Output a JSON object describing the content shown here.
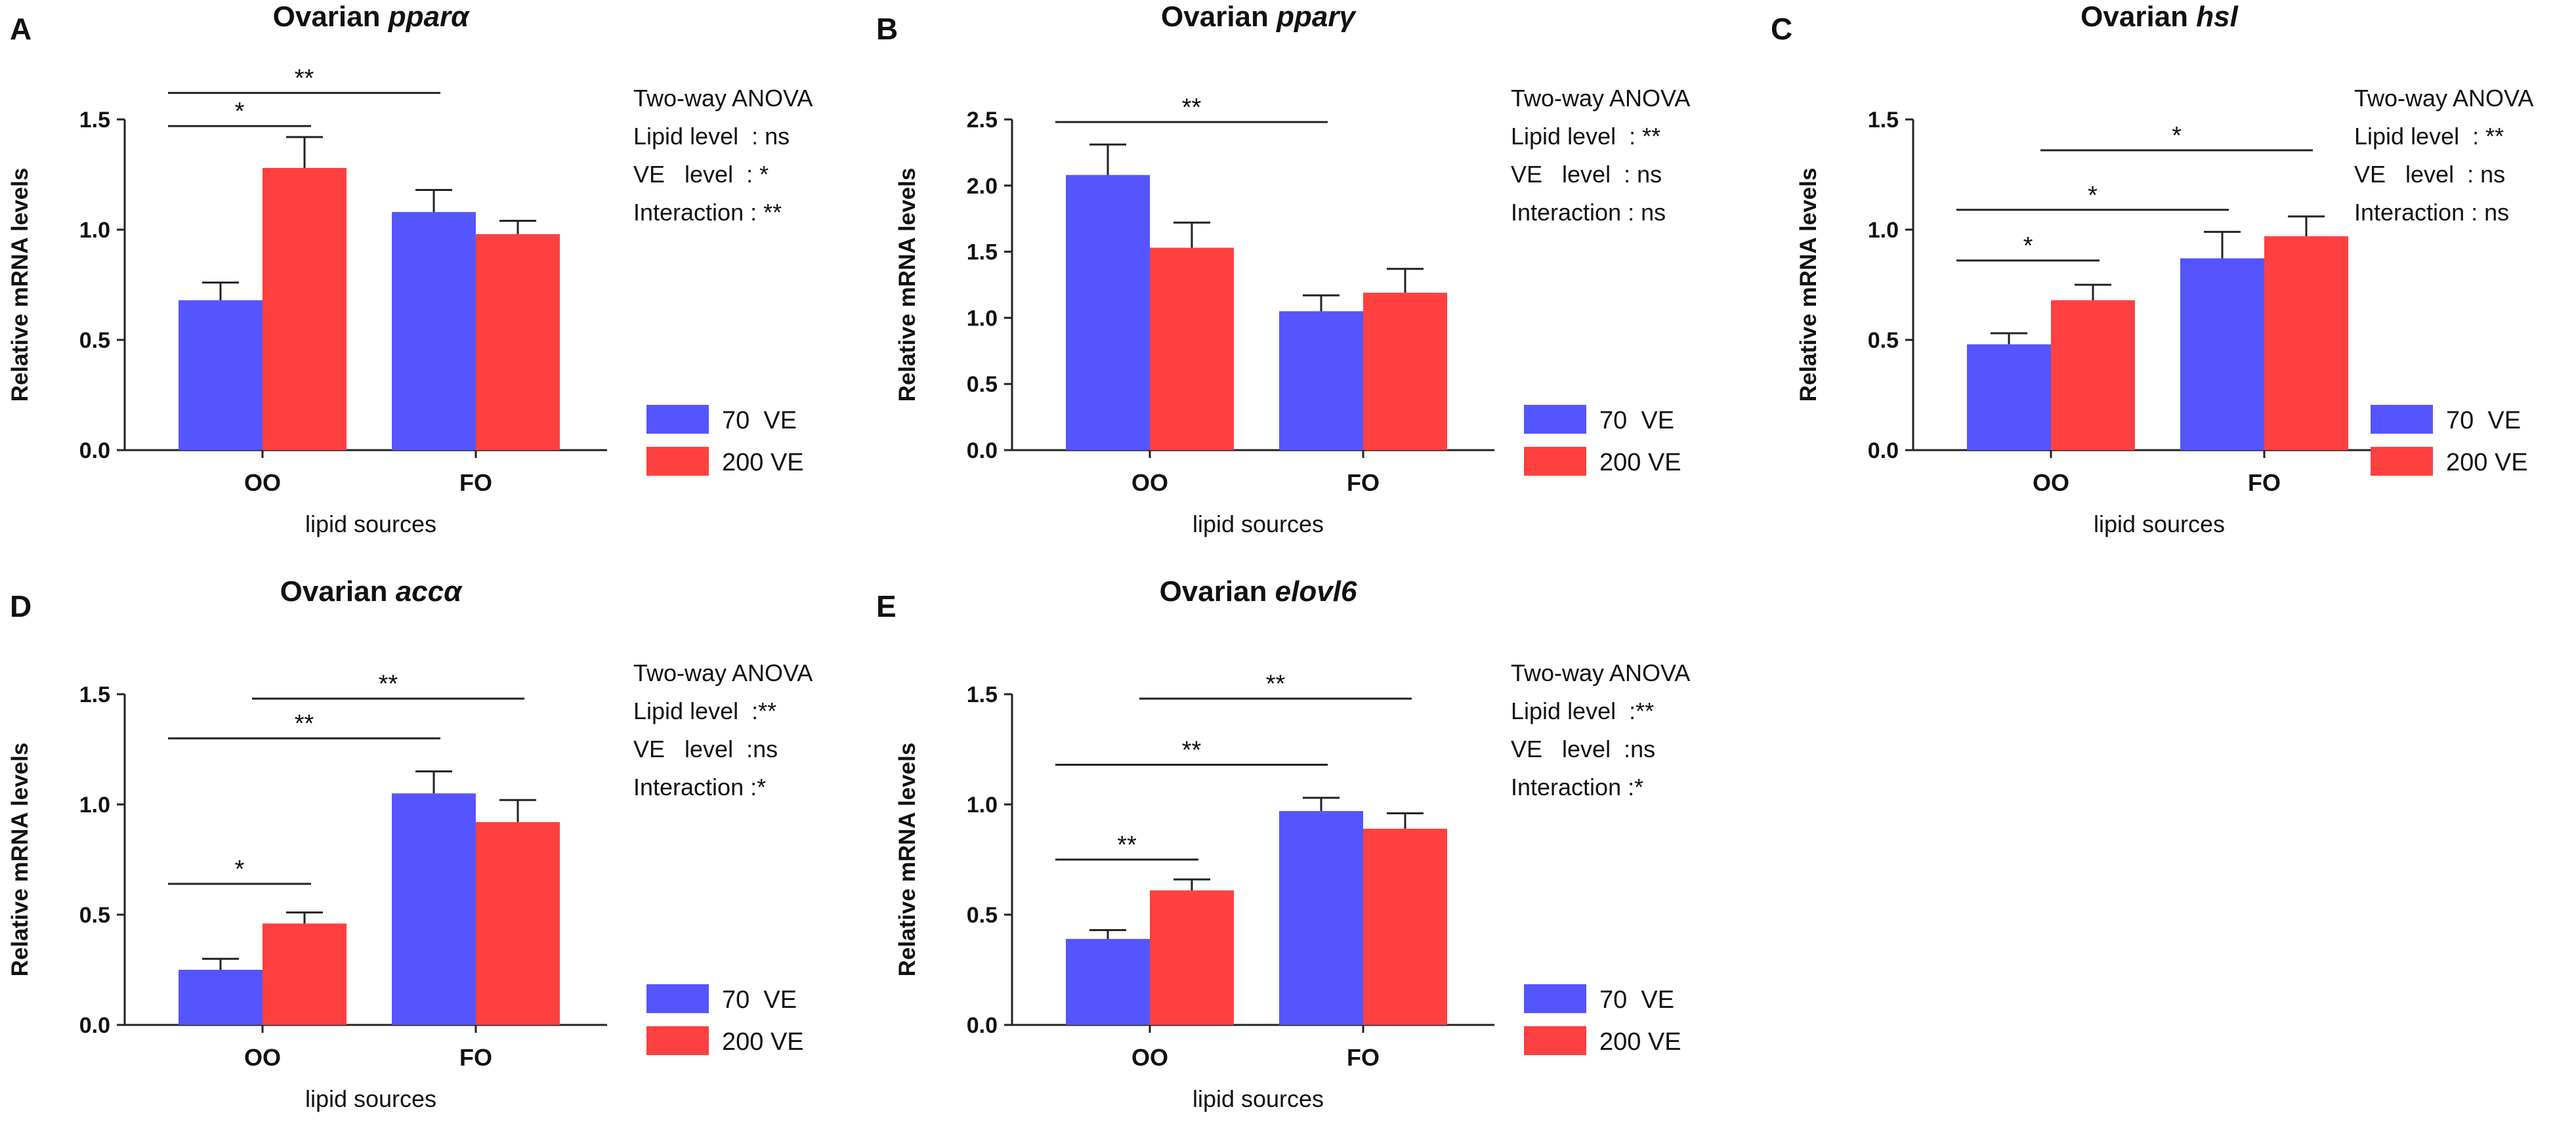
{
  "chart_data": [
    {
      "panel": "A",
      "type": "bar",
      "title_prefix": "Ovarian",
      "title_gene": "pparα",
      "categories": [
        "OO",
        "FO"
      ],
      "series": [
        {
          "name": "70  VE",
          "color": "#5555ff",
          "values": [
            0.68,
            1.08
          ],
          "errors": [
            0.08,
            0.1
          ]
        },
        {
          "name": "200 VE",
          "color": "#ff4040",
          "values": [
            1.28,
            0.98
          ],
          "errors": [
            0.14,
            0.06
          ]
        }
      ],
      "ylim": [
        0,
        1.5
      ],
      "yticks": [
        "0.0",
        "0.5",
        "1.0",
        "1.5"
      ],
      "ytick_values": [
        0,
        0.5,
        1.0,
        1.5
      ],
      "ylabel": "Relative mRNA  levels",
      "xlabel": "lipid sources",
      "stats": {
        "title": "Two-way ANOVA",
        "lines": [
          "Lipid level  : ns",
          "VE   level  : *",
          "Interaction : **"
        ]
      },
      "significance": [
        {
          "label": "*",
          "from": [
            0,
            0
          ],
          "to": [
            0,
            1
          ],
          "level": 1.47
        },
        {
          "label": "**",
          "from": [
            0,
            0
          ],
          "to": [
            1,
            0
          ],
          "level": 1.62
        }
      ]
    },
    {
      "panel": "B",
      "type": "bar",
      "title_prefix": "Ovarian",
      "title_gene": "pparγ",
      "categories": [
        "OO",
        "FO"
      ],
      "series": [
        {
          "name": "70  VE",
          "color": "#5555ff",
          "values": [
            2.08,
            1.05
          ],
          "errors": [
            0.23,
            0.12
          ]
        },
        {
          "name": "200 VE",
          "color": "#ff4040",
          "values": [
            1.53,
            1.19
          ],
          "errors": [
            0.19,
            0.18
          ]
        }
      ],
      "ylim": [
        0,
        2.5
      ],
      "yticks": [
        "0.0",
        "0.5",
        "1.0",
        "1.5",
        "2.0",
        "2.5"
      ],
      "ytick_values": [
        0,
        0.5,
        1.0,
        1.5,
        2.0,
        2.5
      ],
      "ylabel": "Relative mRNA  levels",
      "xlabel": "lipid sources",
      "stats": {
        "title": "Two-way ANOVA",
        "lines": [
          "Lipid level  : **",
          "VE   level  : ns",
          "Interaction : ns"
        ]
      },
      "significance": [
        {
          "label": "**",
          "from": [
            0,
            0
          ],
          "to": [
            1,
            0
          ],
          "level": 2.48
        }
      ]
    },
    {
      "panel": "C",
      "type": "bar",
      "title_prefix": "Ovarian",
      "title_gene": "hsl",
      "categories": [
        "OO",
        "FO"
      ],
      "series": [
        {
          "name": "70  VE",
          "color": "#5555ff",
          "values": [
            0.48,
            0.87
          ],
          "errors": [
            0.05,
            0.12
          ]
        },
        {
          "name": "200 VE",
          "color": "#ff4040",
          "values": [
            0.68,
            0.97
          ],
          "errors": [
            0.07,
            0.09
          ]
        }
      ],
      "ylim": [
        0,
        1.5
      ],
      "yticks": [
        "0.0",
        "0.5",
        "1.0",
        "1.5"
      ],
      "ytick_values": [
        0,
        0.5,
        1.0,
        1.5
      ],
      "ylabel": "Relative mRNA  levels",
      "xlabel": "lipid sources",
      "stats": {
        "title": "Two-way ANOVA",
        "lines": [
          "Lipid level  : **",
          "VE   level  : ns",
          "Interaction : ns"
        ]
      },
      "significance": [
        {
          "label": "*",
          "from": [
            0,
            0
          ],
          "to": [
            0,
            1
          ],
          "level": 0.86
        },
        {
          "label": "*",
          "from": [
            0,
            0
          ],
          "to": [
            1,
            0
          ],
          "level": 1.09
        },
        {
          "label": "*",
          "from": [
            0,
            1
          ],
          "to": [
            1,
            1
          ],
          "level": 1.36
        }
      ]
    },
    {
      "panel": "D",
      "type": "bar",
      "title_prefix": "Ovarian",
      "title_gene": "accα",
      "categories": [
        "OO",
        "FO"
      ],
      "series": [
        {
          "name": "70  VE",
          "color": "#5555ff",
          "values": [
            0.25,
            1.05
          ],
          "errors": [
            0.05,
            0.1
          ]
        },
        {
          "name": "200 VE",
          "color": "#ff4040",
          "values": [
            0.46,
            0.92
          ],
          "errors": [
            0.05,
            0.1
          ]
        }
      ],
      "ylim": [
        0,
        1.5
      ],
      "yticks": [
        "0.0",
        "0.5",
        "1.0",
        "1.5"
      ],
      "ytick_values": [
        0,
        0.5,
        1.0,
        1.5
      ],
      "ylabel": "Relative mRNA  levels",
      "xlabel": "lipid sources",
      "stats": {
        "title": "Two-way ANOVA",
        "lines": [
          "Lipid level  :**",
          "VE   level  :ns",
          "Interaction :*"
        ]
      },
      "significance": [
        {
          "label": "*",
          "from": [
            0,
            0
          ],
          "to": [
            0,
            1
          ],
          "level": 0.64
        },
        {
          "label": "**",
          "from": [
            0,
            0
          ],
          "to": [
            1,
            0
          ],
          "level": 1.3
        },
        {
          "label": "**",
          "from": [
            0,
            1
          ],
          "to": [
            1,
            1
          ],
          "level": 1.48
        }
      ]
    },
    {
      "panel": "E",
      "type": "bar",
      "title_prefix": "Ovarian",
      "title_gene": "elovl6",
      "categories": [
        "OO",
        "FO"
      ],
      "series": [
        {
          "name": "70  VE",
          "color": "#5555ff",
          "values": [
            0.39,
            0.97
          ],
          "errors": [
            0.04,
            0.06
          ]
        },
        {
          "name": "200 VE",
          "color": "#ff4040",
          "values": [
            0.61,
            0.89
          ],
          "errors": [
            0.05,
            0.07
          ]
        }
      ],
      "ylim": [
        0,
        1.5
      ],
      "yticks": [
        "0.0",
        "0.5",
        "1.0",
        "1.5"
      ],
      "ytick_values": [
        0,
        0.5,
        1.0,
        1.5
      ],
      "ylabel": "Relative mRNA  levels",
      "xlabel": "lipid sources",
      "stats": {
        "title": "Two-way ANOVA",
        "lines": [
          "Lipid level  :**",
          "VE   level  :ns",
          "Interaction :*"
        ]
      },
      "significance": [
        {
          "label": "**",
          "from": [
            0,
            0
          ],
          "to": [
            0,
            1
          ],
          "level": 0.75
        },
        {
          "label": "**",
          "from": [
            0,
            0
          ],
          "to": [
            1,
            0
          ],
          "level": 1.18
        },
        {
          "label": "**",
          "from": [
            0,
            1
          ],
          "to": [
            1,
            1
          ],
          "level": 1.48
        }
      ]
    }
  ]
}
